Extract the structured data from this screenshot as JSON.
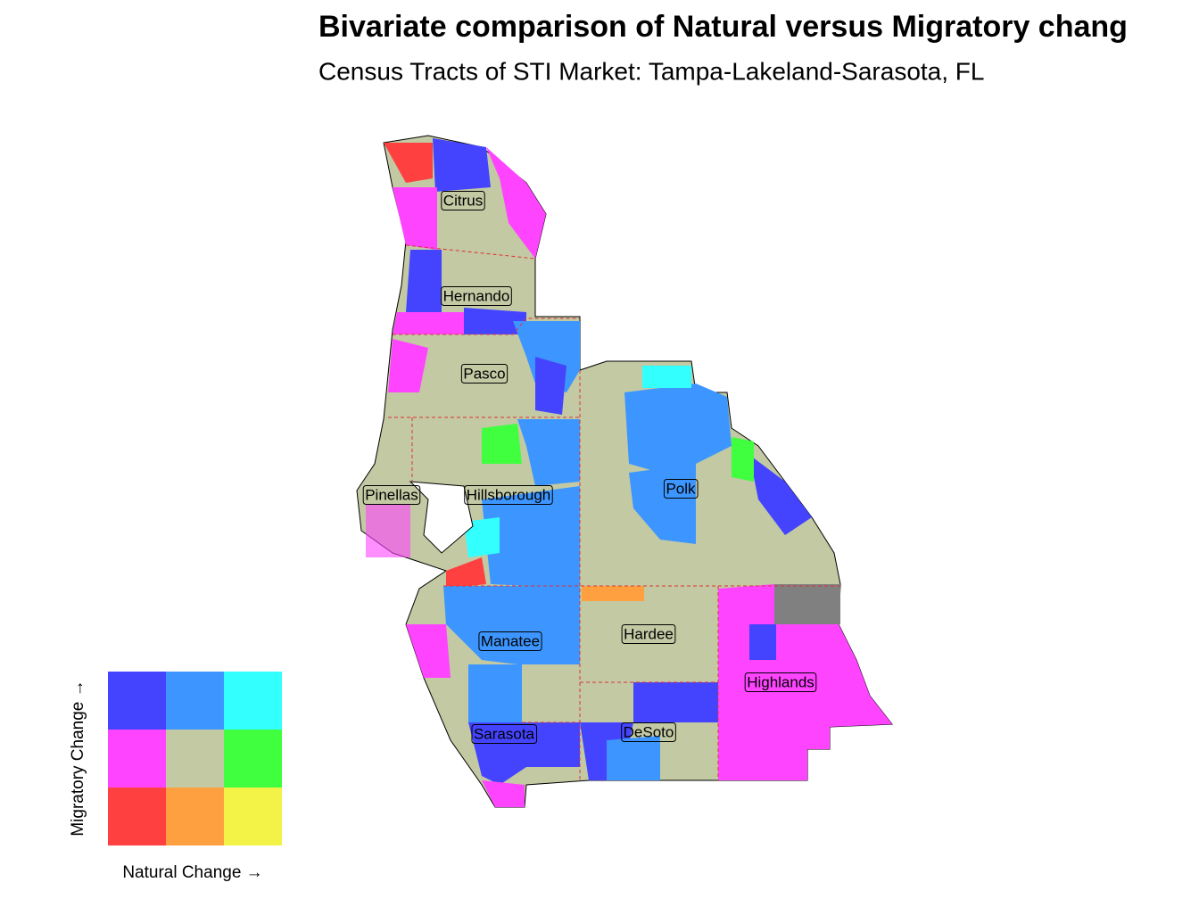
{
  "header": {
    "title": "Bivariate comparison of Natural versus Migratory chang",
    "subtitle": "Census Tracts of STI Market: Tampa-Lakeland-Sarasota, FL"
  },
  "map": {
    "counties": [
      "Citrus",
      "Hernando",
      "Pasco",
      "Pinellas",
      "Hillsborough",
      "Polk",
      "Manatee",
      "Hardee",
      "Highlands",
      "Sarasota",
      "DeSoto"
    ]
  },
  "legend": {
    "x_label": "Natural Change →",
    "y_label": "Migratory Change →",
    "colors": [
      [
        "#4444ff",
        "#3d96ff",
        "#33ffff"
      ],
      [
        "#ff44ff",
        "#c2c9a3",
        "#3fff3f"
      ],
      [
        "#ff4040",
        "#ffa040",
        "#f3f347"
      ]
    ]
  }
}
